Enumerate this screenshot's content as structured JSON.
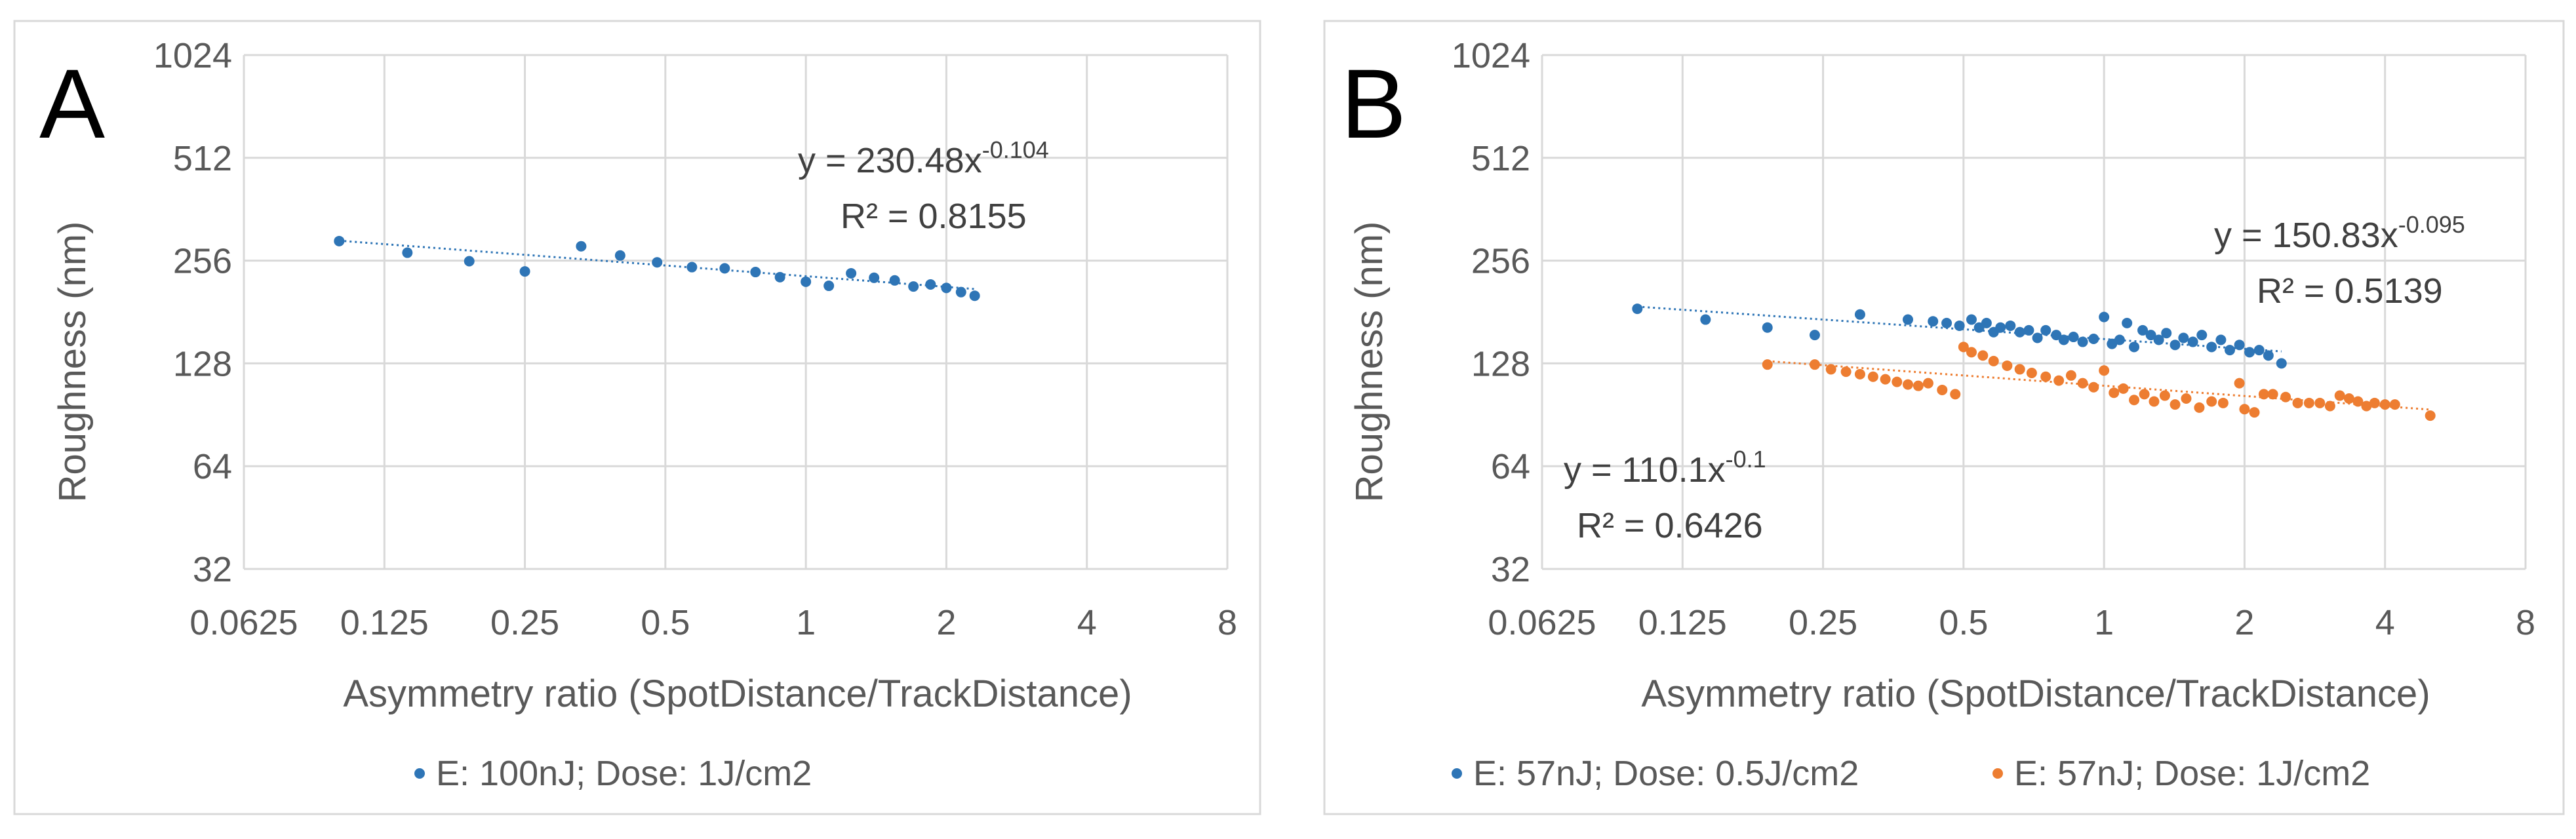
{
  "colors": {
    "blue": "#2E75B6",
    "orange": "#ED7D31",
    "grid": "#D9D9D9",
    "text": "#595959",
    "frame": "#D9D9D9"
  },
  "chart_data": [
    {
      "type": "scatter",
      "panel_label": "A",
      "xlabel": "Asymmetry ratio (SpotDistance/TrackDistance)",
      "ylabel": "Roughness (nm)",
      "x_scale": "log2",
      "y_scale": "log2",
      "xlim": [
        0.0625,
        8
      ],
      "ylim": [
        32,
        1024
      ],
      "x_ticks": [
        "0.0625",
        "0.125",
        "0.25",
        "0.5",
        "1",
        "2",
        "4",
        "8"
      ],
      "y_ticks": [
        "32",
        "64",
        "128",
        "256",
        "512",
        "1024"
      ],
      "legend_position": "bottom",
      "series": [
        {
          "name": "E: 100nJ; Dose: 1J/cm2",
          "color_key": "blue",
          "points": [
            [
              0.1,
              292
            ],
            [
              0.14,
              270
            ],
            [
              0.19,
              255
            ],
            [
              0.25,
              238
            ],
            [
              0.33,
              282
            ],
            [
              0.4,
              265
            ],
            [
              0.48,
              253
            ],
            [
              0.57,
              245
            ],
            [
              0.67,
              243
            ],
            [
              0.78,
              237
            ],
            [
              0.88,
              229
            ],
            [
              1.0,
              222
            ],
            [
              1.12,
              216
            ],
            [
              1.25,
              235
            ],
            [
              1.4,
              228
            ],
            [
              1.55,
              224
            ],
            [
              1.7,
              215
            ],
            [
              1.85,
              218
            ],
            [
              2.0,
              213
            ],
            [
              2.15,
              207
            ],
            [
              2.3,
              202
            ]
          ],
          "trendline": {
            "a": 230.48,
            "b": -0.104,
            "range": [
              0.1,
              2.3
            ]
          }
        }
      ],
      "annotations": [
        {
          "id": "eq",
          "prefix": "y = 230.48x",
          "exponent": "-0.104"
        },
        {
          "id": "r2",
          "text": "R² = 0.8155"
        }
      ]
    },
    {
      "type": "scatter",
      "panel_label": "B",
      "xlabel": "Asymmetry ratio (SpotDistance/TrackDistance)",
      "ylabel": "Roughness (nm)",
      "x_scale": "log2",
      "y_scale": "log2",
      "xlim": [
        0.0625,
        8
      ],
      "ylim": [
        32,
        1024
      ],
      "x_ticks": [
        "0.0625",
        "0.125",
        "0.25",
        "0.5",
        "1",
        "2",
        "4",
        "8"
      ],
      "y_ticks": [
        "32",
        "64",
        "128",
        "256",
        "512",
        "1024"
      ],
      "legend_position": "bottom",
      "series": [
        {
          "name": "E: 57nJ; Dose: 0.5J/cm2",
          "color_key": "blue",
          "points": [
            [
              0.1,
              185
            ],
            [
              0.14,
              172
            ],
            [
              0.19,
              163
            ],
            [
              0.24,
              155
            ],
            [
              0.3,
              178
            ],
            [
              0.38,
              172
            ],
            [
              0.43,
              170
            ],
            [
              0.46,
              168
            ],
            [
              0.49,
              165
            ],
            [
              0.52,
              172
            ],
            [
              0.54,
              163
            ],
            [
              0.56,
              168
            ],
            [
              0.58,
              158
            ],
            [
              0.6,
              163
            ],
            [
              0.63,
              165
            ],
            [
              0.66,
              158
            ],
            [
              0.69,
              160
            ],
            [
              0.72,
              152
            ],
            [
              0.75,
              160
            ],
            [
              0.79,
              155
            ],
            [
              0.82,
              150
            ],
            [
              0.86,
              153
            ],
            [
              0.9,
              148
            ],
            [
              0.95,
              151
            ],
            [
              1.0,
              175
            ],
            [
              1.04,
              146
            ],
            [
              1.08,
              150
            ],
            [
              1.12,
              168
            ],
            [
              1.16,
              143
            ],
            [
              1.21,
              160
            ],
            [
              1.26,
              155
            ],
            [
              1.31,
              150
            ],
            [
              1.36,
              157
            ],
            [
              1.42,
              145
            ],
            [
              1.48,
              152
            ],
            [
              1.55,
              148
            ],
            [
              1.62,
              155
            ],
            [
              1.7,
              143
            ],
            [
              1.78,
              150
            ],
            [
              1.86,
              140
            ],
            [
              1.95,
              145
            ],
            [
              2.05,
              138
            ],
            [
              2.15,
              140
            ],
            [
              2.25,
              135
            ],
            [
              2.4,
              128
            ]
          ],
          "trendline": {
            "a": 150.83,
            "b": -0.095,
            "range": [
              0.1,
              2.4
            ]
          }
        },
        {
          "name": "E: 57nJ; Dose: 1J/cm2",
          "color_key": "orange",
          "points": [
            [
              0.19,
              127
            ],
            [
              0.24,
              127
            ],
            [
              0.26,
              123
            ],
            [
              0.28,
              121
            ],
            [
              0.3,
              119
            ],
            [
              0.32,
              117
            ],
            [
              0.34,
              115
            ],
            [
              0.36,
              113
            ],
            [
              0.38,
              111
            ],
            [
              0.4,
              110
            ],
            [
              0.42,
              112
            ],
            [
              0.45,
              107
            ],
            [
              0.48,
              104
            ],
            [
              0.5,
              143
            ],
            [
              0.52,
              138
            ],
            [
              0.55,
              135
            ],
            [
              0.58,
              130
            ],
            [
              0.62,
              126
            ],
            [
              0.66,
              123
            ],
            [
              0.7,
              120
            ],
            [
              0.75,
              117
            ],
            [
              0.8,
              114
            ],
            [
              0.85,
              118
            ],
            [
              0.9,
              112
            ],
            [
              0.95,
              109
            ],
            [
              1.0,
              122
            ],
            [
              1.05,
              105
            ],
            [
              1.1,
              108
            ],
            [
              1.16,
              100
            ],
            [
              1.22,
              104
            ],
            [
              1.28,
              99
            ],
            [
              1.35,
              103
            ],
            [
              1.42,
              97
            ],
            [
              1.5,
              101
            ],
            [
              1.6,
              95
            ],
            [
              1.7,
              99
            ],
            [
              1.8,
              98
            ],
            [
              1.95,
              112
            ],
            [
              2.0,
              94
            ],
            [
              2.1,
              92
            ],
            [
              2.2,
              104
            ],
            [
              2.3,
              104
            ],
            [
              2.45,
              102
            ],
            [
              2.6,
              98
            ],
            [
              2.75,
              98
            ],
            [
              2.9,
              98
            ],
            [
              3.05,
              96
            ],
            [
              3.2,
              103
            ],
            [
              3.35,
              101
            ],
            [
              3.5,
              99
            ],
            [
              3.65,
              96
            ],
            [
              3.8,
              98
            ],
            [
              4.0,
              97
            ],
            [
              4.2,
              97
            ],
            [
              5.0,
              90
            ]
          ],
          "trendline": {
            "a": 110.1,
            "b": -0.1,
            "range": [
              0.19,
              5.0
            ]
          }
        }
      ],
      "annotations": [
        {
          "id": "eq_blue",
          "prefix": "y = 150.83x",
          "exponent": "-0.095"
        },
        {
          "id": "r2_blue",
          "text": "R² = 0.5139"
        },
        {
          "id": "eq_orange",
          "prefix": "y = 110.1x",
          "exponent": "-0.1"
        },
        {
          "id": "r2_orange",
          "text": "R² = 0.6426"
        }
      ]
    }
  ]
}
